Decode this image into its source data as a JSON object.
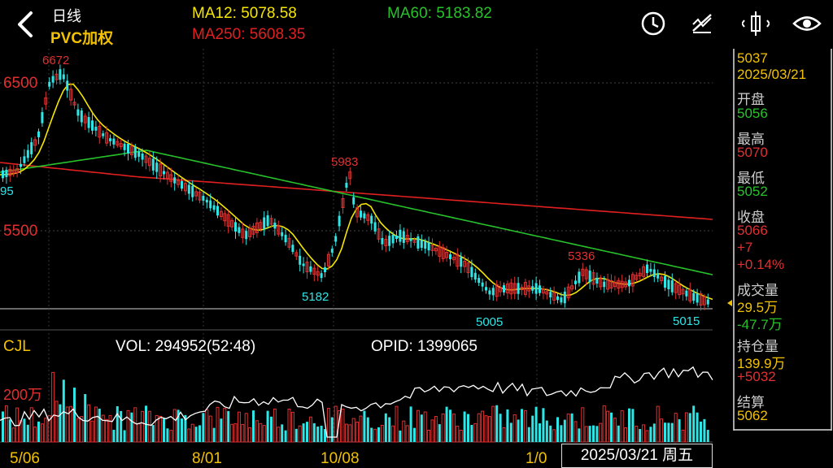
{
  "header": {
    "period": "日线",
    "symbol": "PVC加权",
    "ma12": "MA12: 5078.58",
    "ma60": "MA60: 5183.82",
    "ma250": "MA250: 5608.35"
  },
  "toolbar": {
    "icons": [
      "clock-icon",
      "line-style-icon",
      "crosshair-icon",
      "eye-icon"
    ]
  },
  "main_chart": {
    "price_labels": [
      "6500",
      "5500"
    ],
    "annotations": {
      "high_6672": "6672",
      "low_95": "95",
      "peak_5983": "5983",
      "low_5182": "5182",
      "low_5005": "5005",
      "peak_5336": "5336",
      "low_5015": "5015"
    }
  },
  "volume": {
    "indicator": "CJL",
    "vol": "VOL: 294952(52:48)",
    "opid": "OPID: 1399065",
    "level_label": "200万"
  },
  "x_axis": {
    "dates": [
      "5/06",
      "8/01",
      "10/08",
      "1/0"
    ]
  },
  "crosshair_date": "2025/03/21 周五",
  "info_panel": {
    "price": "5037",
    "date": "2025/03/21",
    "open_label": "开盘",
    "open_value": "5056",
    "high_label": "最高",
    "high_value": "5070",
    "low_label": "最低",
    "low_value": "5052",
    "close_label": "收盘",
    "close_value": "5066",
    "close_change": "+7",
    "close_pct": "+0.14%",
    "volume_label": "成交量",
    "volume_value": "29.5万",
    "volume_change": "-47.7万",
    "oi_label": "持仓量",
    "oi_value": "139.9万",
    "oi_change": "+5032",
    "settle_label": "结算",
    "settle_value": "5062"
  },
  "colors": {
    "ma12": "#f5e600",
    "ma60": "#27c22a",
    "ma250": "#e02020",
    "up": "#e03030",
    "down": "#2ee6e6",
    "label_yellow": "#f2c200"
  }
}
